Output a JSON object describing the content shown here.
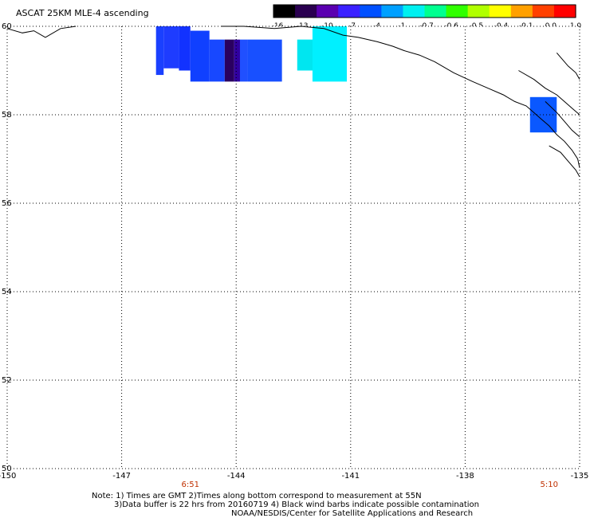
{
  "title": "ASCAT 25KM MLE-4 ascending",
  "colorbar": {
    "ticks": [
      "-16",
      "-13",
      "-10",
      "-7",
      "-4",
      "-1",
      "-0.7",
      "-0.6",
      "-0.5",
      "-0.4",
      "-0.1",
      "0.0",
      "1.0"
    ],
    "colors": [
      "#000000",
      "#2a0050",
      "#5a00b0",
      "#3a20ff",
      "#0050ff",
      "#00a0ff",
      "#00f0f0",
      "#00ff90",
      "#30ff00",
      "#b0ff00",
      "#ffff00",
      "#ffa000",
      "#ff4000",
      "#ff0000"
    ]
  },
  "map": {
    "lon_range": [
      -150,
      -135
    ],
    "lat_range": [
      50,
      60
    ],
    "lon_labels": [
      "-150",
      "-147",
      "-144",
      "-141",
      "-138",
      "-135"
    ],
    "lat_labels": [
      "50",
      "52",
      "54",
      "56",
      "58",
      "60"
    ],
    "times": [
      {
        "text": "6:51",
        "lon": -145.2,
        "color": "#c03000"
      },
      {
        "text": "5:10",
        "lon": -135.8,
        "color": "#c03000"
      }
    ],
    "cells": [
      {
        "lon0": -146.1,
        "lon1": -145.9,
        "lat0": 58.9,
        "lat1": 60,
        "color": "#1a40ff"
      },
      {
        "lon0": -145.9,
        "lon1": -145.5,
        "lat0": 59.05,
        "lat1": 60,
        "color": "#1e3cff"
      },
      {
        "lon0": -145.5,
        "lon1": -145.2,
        "lat0": 59.0,
        "lat1": 60,
        "color": "#1232ff"
      },
      {
        "lon0": -145.2,
        "lon1": -144.7,
        "lat0": 58.75,
        "lat1": 59.9,
        "color": "#1040ff"
      },
      {
        "lon0": -144.7,
        "lon1": -144.3,
        "lat0": 58.75,
        "lat1": 59.7,
        "color": "#1848ff"
      },
      {
        "lon0": -144.3,
        "lon1": -144.05,
        "lat0": 58.75,
        "lat1": 59.7,
        "color": "#2a0060"
      },
      {
        "lon0": -144.05,
        "lon1": -143.9,
        "lat0": 58.75,
        "lat1": 59.7,
        "color": "#3000a0"
      },
      {
        "lon0": -143.9,
        "lon1": -143.7,
        "lat0": 58.75,
        "lat1": 59.7,
        "color": "#2050ff"
      },
      {
        "lon0": -143.7,
        "lon1": -142.8,
        "lat0": 58.75,
        "lat1": 59.7,
        "color": "#1850ff"
      },
      {
        "lon0": -142.4,
        "lon1": -141.6,
        "lat0": 59.0,
        "lat1": 59.7,
        "color": "#00e6f0"
      },
      {
        "lon0": -142.0,
        "lon1": -141.1,
        "lat0": 58.75,
        "lat1": 60,
        "color": "#00f0ff"
      },
      {
        "lon0": -136.3,
        "lon1": -135.6,
        "lat0": 57.6,
        "lat1": 58.4,
        "color": "#0a58ff"
      }
    ],
    "coast": [
      [
        [
          -150,
          59.95
        ],
        [
          -149.6,
          59.85
        ],
        [
          -149.3,
          59.9
        ],
        [
          -149.0,
          59.75
        ],
        [
          -148.6,
          59.95
        ],
        [
          -148.2,
          60
        ]
      ],
      [
        [
          -144.4,
          60
        ],
        [
          -143.8,
          60
        ],
        [
          -143.0,
          59.95
        ],
        [
          -142.3,
          60
        ],
        [
          -141.7,
          59.95
        ],
        [
          -141.2,
          59.8
        ],
        [
          -140.8,
          59.75
        ],
        [
          -140.3,
          59.65
        ],
        [
          -139.9,
          59.55
        ],
        [
          -139.6,
          59.45
        ],
        [
          -139.2,
          59.35
        ],
        [
          -138.8,
          59.2
        ],
        [
          -138.3,
          58.95
        ],
        [
          -137.8,
          58.75
        ],
        [
          -137.4,
          58.6
        ],
        [
          -137.0,
          58.45
        ],
        [
          -136.7,
          58.3
        ],
        [
          -136.4,
          58.2
        ],
        [
          -136.2,
          58.05
        ],
        [
          -136.0,
          57.9
        ],
        [
          -135.8,
          57.75
        ],
        [
          -135.6,
          57.55
        ],
        [
          -135.4,
          57.4
        ],
        [
          -135.2,
          57.2
        ],
        [
          -135.05,
          57.0
        ],
        [
          -135,
          56.8
        ]
      ],
      [
        [
          -136.6,
          59.0
        ],
        [
          -136.2,
          58.8
        ],
        [
          -135.9,
          58.6
        ],
        [
          -135.6,
          58.45
        ],
        [
          -135.4,
          58.3
        ],
        [
          -135.2,
          58.15
        ],
        [
          -135.0,
          58.0
        ]
      ],
      [
        [
          -135.9,
          58.3
        ],
        [
          -135.6,
          58.05
        ],
        [
          -135.4,
          57.85
        ],
        [
          -135.2,
          57.65
        ],
        [
          -135,
          57.5
        ]
      ],
      [
        [
          -135.8,
          57.3
        ],
        [
          -135.5,
          57.15
        ],
        [
          -135.3,
          56.95
        ],
        [
          -135.1,
          56.75
        ],
        [
          -135,
          56.6
        ]
      ],
      [
        [
          -135.6,
          59.4
        ],
        [
          -135.3,
          59.1
        ],
        [
          -135.1,
          58.95
        ],
        [
          -135,
          58.8
        ]
      ]
    ]
  },
  "notes": [
    "Note: 1) Times are GMT 2)Times along bottom correspond to measurement at 55N",
    "3)Data buffer is 22 hrs from 20160719 4) Black wind barbs indicate possible contamination",
    "NOAA/NESDIS/Center for Satellite Applications and Research"
  ]
}
